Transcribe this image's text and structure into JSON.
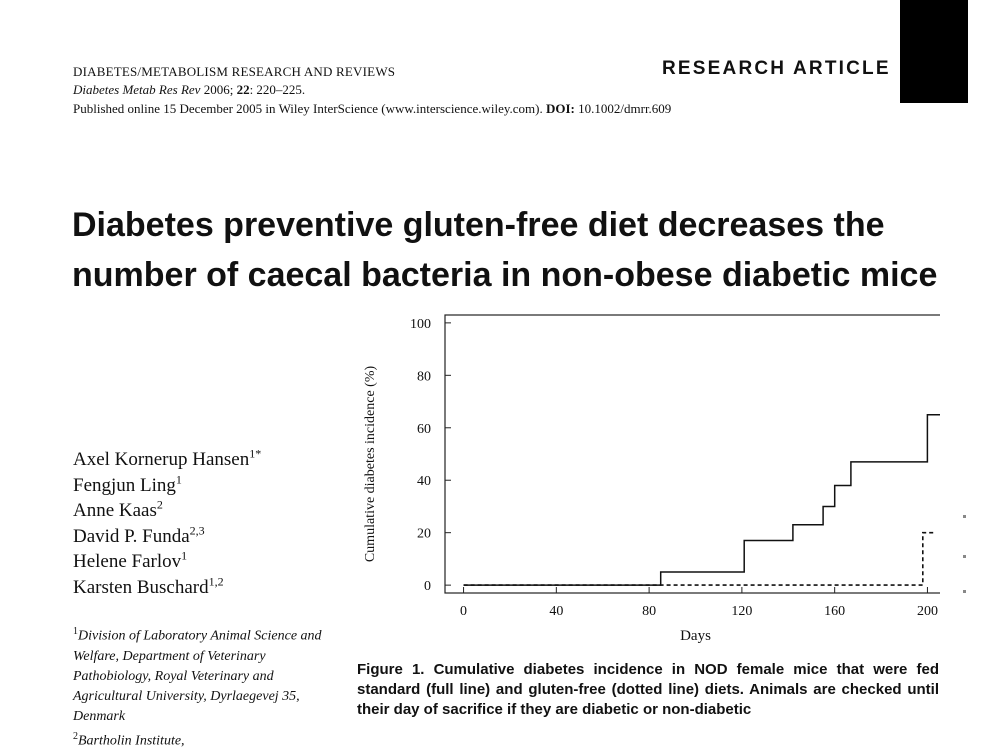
{
  "header": {
    "journal_name": "DIABETES/METABOLISM RESEARCH AND REVIEWS",
    "citation_journal": "Diabetes Metab Res Rev",
    "citation_year": "2006;",
    "citation_volume": "22",
    "citation_pages": ": 220–225.",
    "published_text": "Published online 15 December 2005 in Wiley InterScience (www.interscience.wiley.com).",
    "doi_label": "DOI:",
    "doi_value": "10.1002/dmrr.609",
    "article_type": "RESEARCH ARTICLE"
  },
  "title": "Diabetes preventive gluten-free diet decreases the number of caecal bacteria in non-obese diabetic mice",
  "authors": [
    {
      "name": "Axel Kornerup Hansen",
      "sup": "1*"
    },
    {
      "name": "Fengjun Ling",
      "sup": "1"
    },
    {
      "name": "Anne Kaas",
      "sup": "2"
    },
    {
      "name": "David P. Funda",
      "sup": "2,3"
    },
    {
      "name": "Helene Farlov",
      "sup": "1"
    },
    {
      "name": "Karsten Buschard",
      "sup": "1,2"
    }
  ],
  "affiliations": {
    "first_sup": "1",
    "first_text": "Division of Laboratory Animal Science and Welfare, Department of Veterinary Pathobiology, Royal Veterinary and Agricultural University, Dyrlaegevej 35, Denmark",
    "second_sup": "2",
    "second_text": "Bartholin Institute,"
  },
  "figure": {
    "caption_label": "Figure 1.",
    "caption_text": "Cumulative diabetes incidence in NOD female mice that were fed standard (full line) and gluten-free (dotted line) diets. Animals are checked until their day of sacrifice if they are diabetic or non-diabetic"
  },
  "chart_data": {
    "type": "line",
    "title": "",
    "xlabel": "Days",
    "ylabel": "Cumulative diabetes incidence (%)",
    "xlim": [
      -8,
      208
    ],
    "ylim": [
      -3,
      103
    ],
    "xticks": [
      0,
      40,
      80,
      120,
      160,
      200
    ],
    "yticks": [
      0,
      20,
      40,
      60,
      80,
      100
    ],
    "grid": false,
    "series": [
      {
        "style": "solid",
        "points": [
          [
            0,
            0
          ],
          [
            85,
            0
          ],
          [
            85,
            5
          ],
          [
            121,
            5
          ],
          [
            121,
            17
          ],
          [
            142,
            17
          ],
          [
            142,
            23
          ],
          [
            155,
            23
          ],
          [
            155,
            30
          ],
          [
            160,
            30
          ],
          [
            160,
            38
          ],
          [
            167,
            38
          ],
          [
            167,
            47
          ],
          [
            200,
            47
          ],
          [
            200,
            65
          ],
          [
            207,
            65
          ],
          [
            207,
            100
          ]
        ]
      },
      {
        "style": "dotted",
        "points": [
          [
            0,
            0
          ],
          [
            85,
            0
          ],
          [
            198,
            0
          ],
          [
            198,
            20
          ],
          [
            203,
            20
          ]
        ]
      }
    ]
  },
  "colors": {
    "text": "#111111",
    "block": "#000000",
    "background": "#ffffff"
  }
}
